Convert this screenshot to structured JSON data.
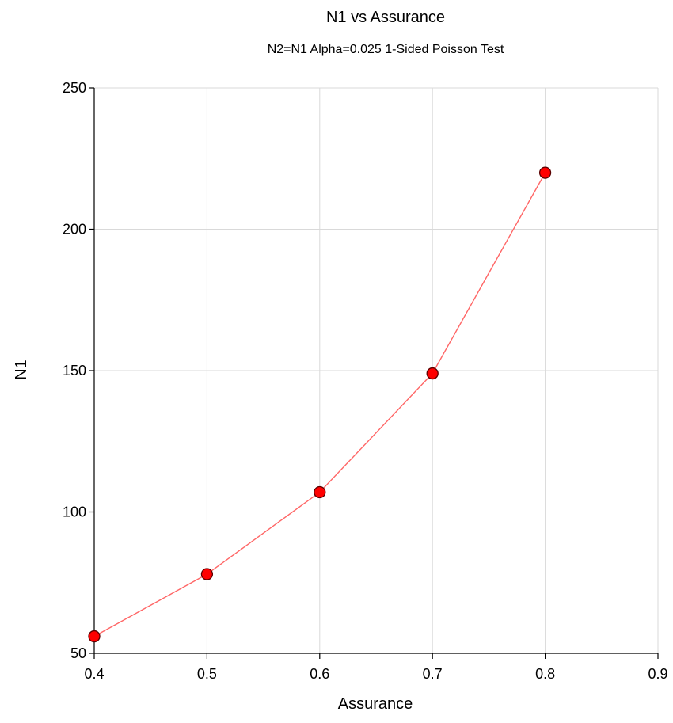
{
  "chart_data": {
    "type": "line",
    "title": "N1 vs Assurance",
    "subtitle": "N2=N1 Alpha=0.025 1-Sided Poisson Test",
    "xlabel": "Assurance",
    "ylabel": "N1",
    "xlim": [
      0.4,
      0.9
    ],
    "ylim": [
      50,
      250
    ],
    "x_ticks": [
      0.4,
      0.5,
      0.6,
      0.7,
      0.8,
      0.9
    ],
    "x_tick_labels": [
      "0.4",
      "0.5",
      "0.6",
      "0.7",
      "0.8",
      "0.9"
    ],
    "y_ticks": [
      50,
      100,
      150,
      200,
      250
    ],
    "y_tick_labels": [
      "50",
      "100",
      "150",
      "200",
      "250"
    ],
    "grid": true,
    "series": [
      {
        "x": [
          0.4,
          0.5,
          0.6,
          0.7,
          0.8
        ],
        "y": [
          56,
          78,
          107,
          149,
          220
        ],
        "line_color": "#ff6666",
        "marker_color": "#ff0000"
      }
    ]
  }
}
